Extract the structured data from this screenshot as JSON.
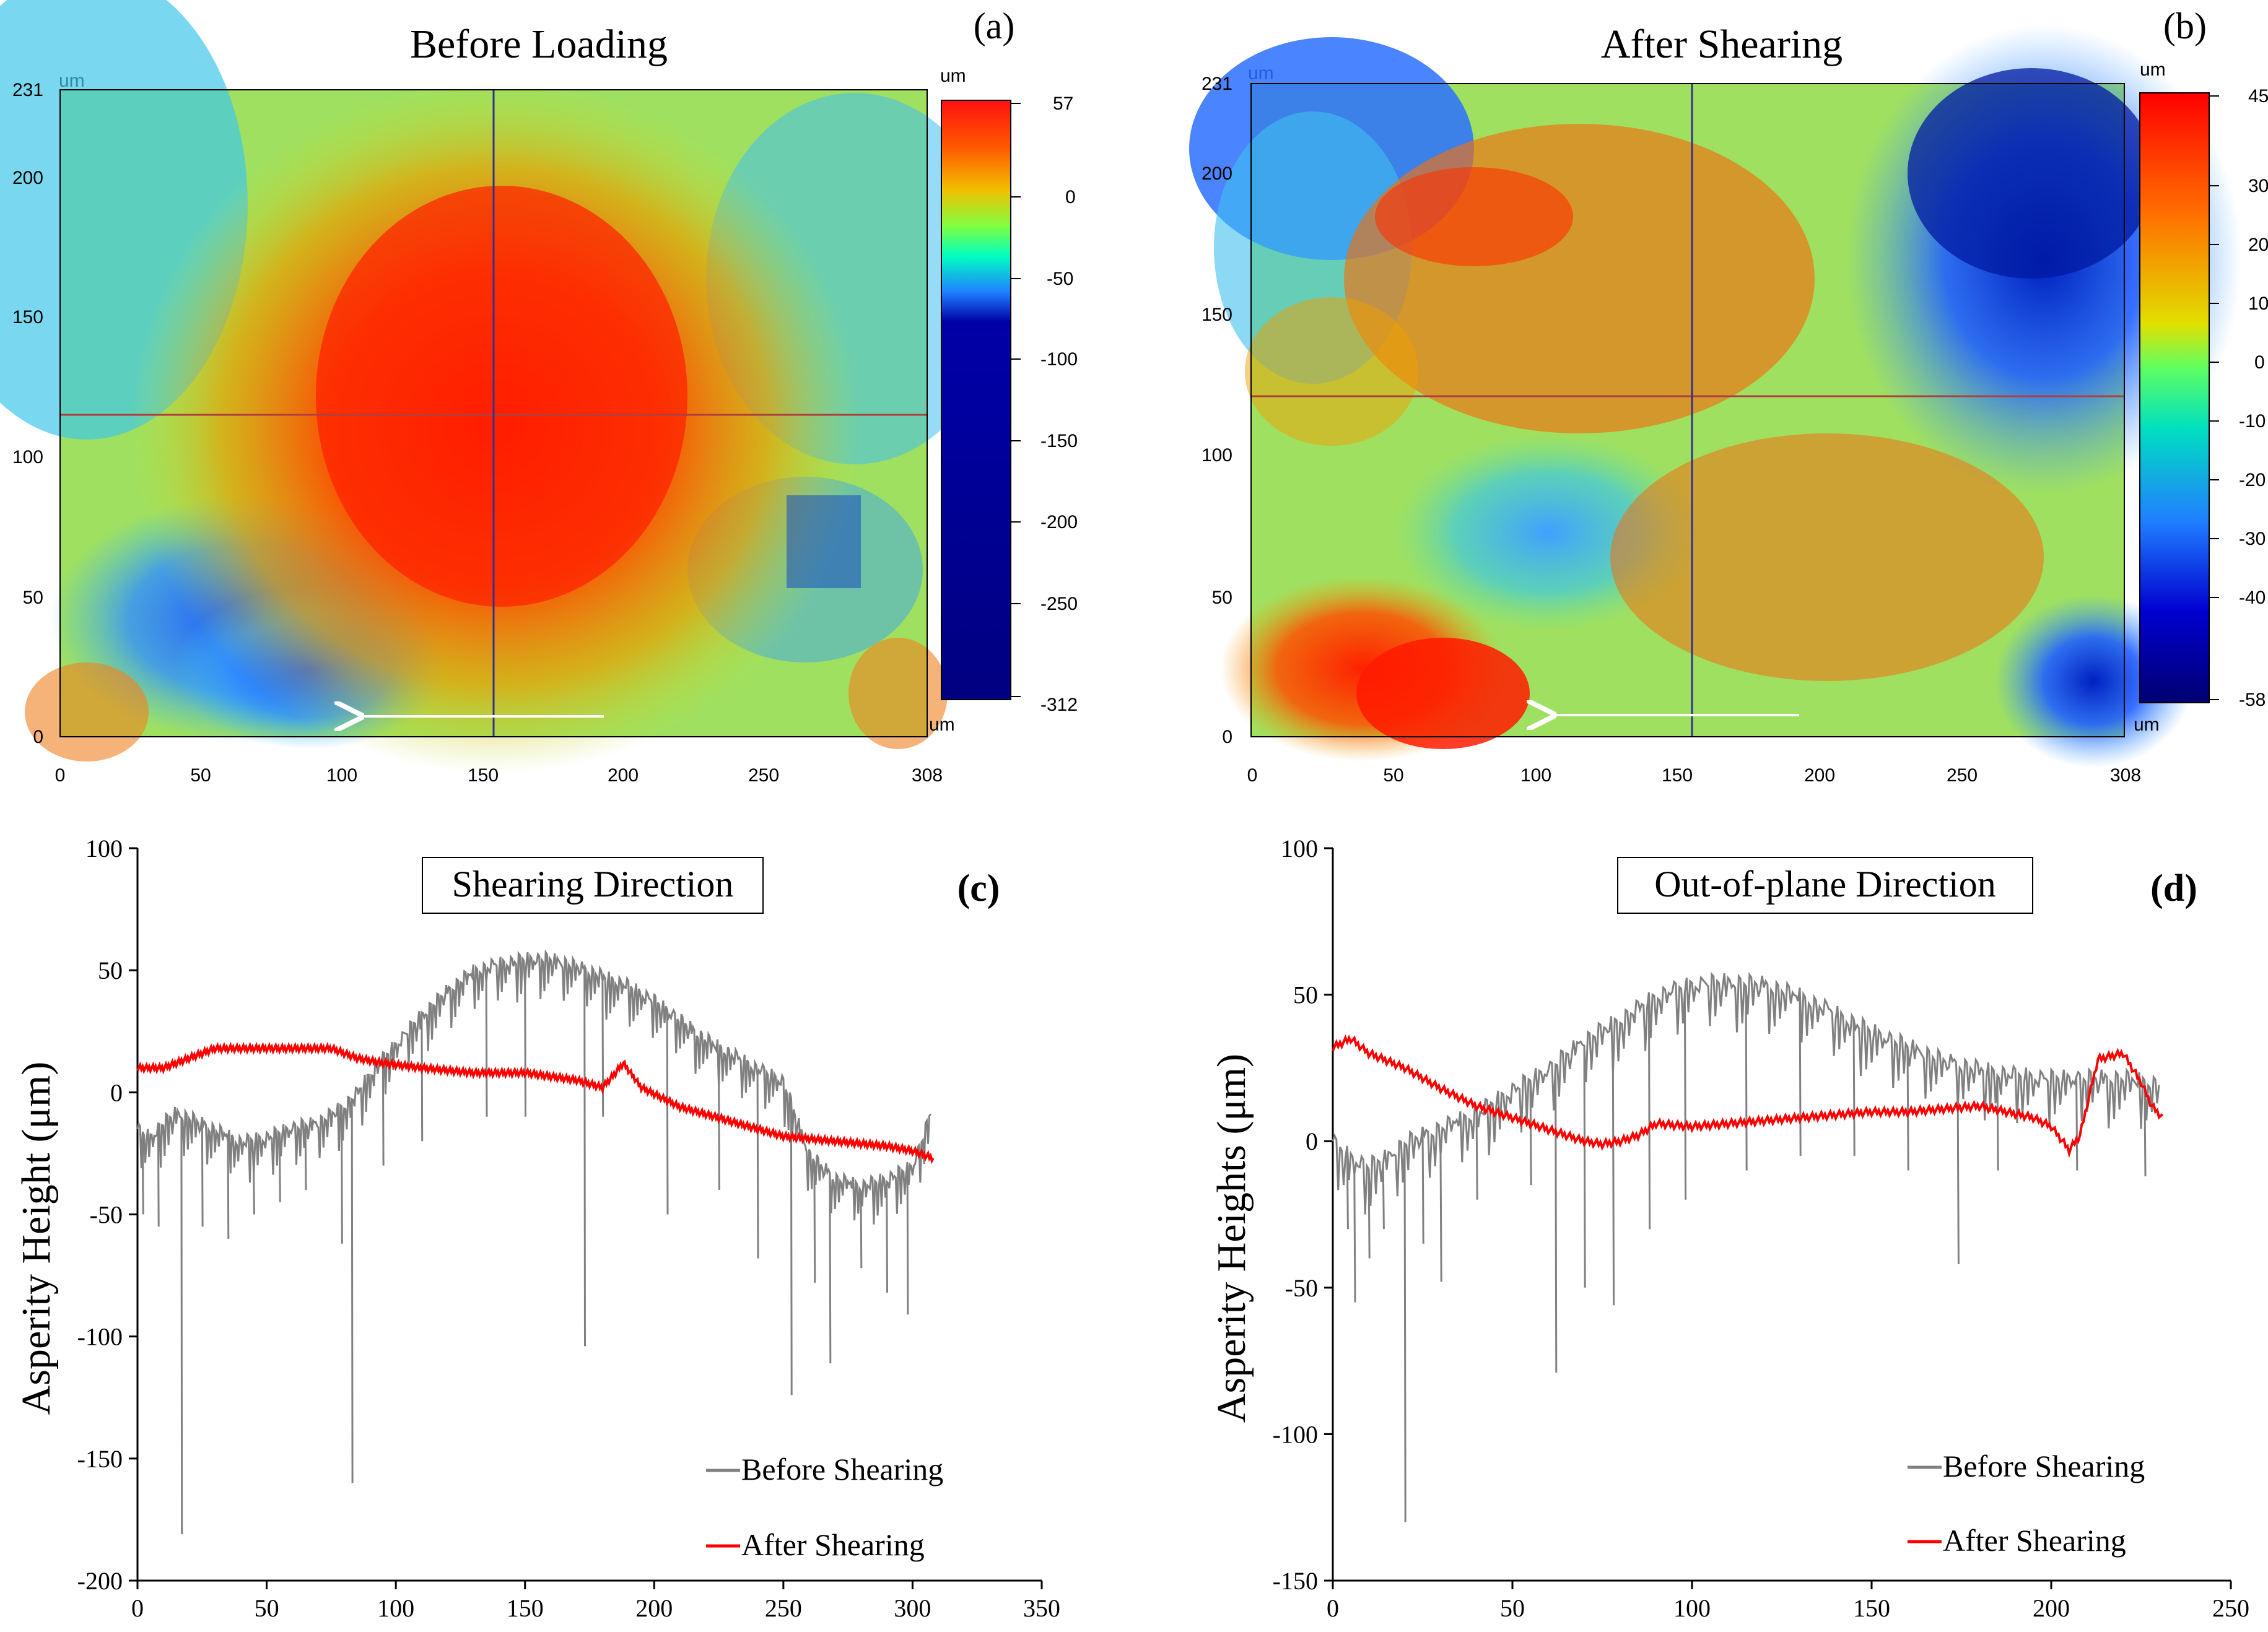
{
  "figure": {
    "panels": [
      {
        "id": "a",
        "label": "(a)",
        "title": "Before Loading",
        "type": "heatmap",
        "x_unit": "um",
        "y_unit": "um",
        "cbar_unit_top": "um",
        "cbar_unit_bottom": "um",
        "x_ticks": [
          "0",
          "50",
          "100",
          "150",
          "200",
          "250",
          "308"
        ],
        "y_ticks": [
          "0",
          "50",
          "100",
          "150",
          "200",
          "231"
        ],
        "cbar_ticks": [
          "57",
          "0",
          "-50",
          "-100",
          "-150",
          "-200",
          "-250",
          "-312"
        ]
      },
      {
        "id": "b",
        "label": "(b)",
        "title": "After Shearing",
        "type": "heatmap",
        "x_unit": "um",
        "y_unit": "um",
        "cbar_unit_top": "um",
        "cbar_unit_bottom": "um",
        "x_ticks": [
          "0",
          "50",
          "100",
          "150",
          "200",
          "250",
          "308"
        ],
        "y_ticks": [
          "0",
          "50",
          "100",
          "150",
          "200",
          "231"
        ],
        "cbar_ticks": [
          "45",
          "30",
          "20",
          "10",
          "0",
          "-10",
          "-20",
          "-30",
          "-40",
          "-58"
        ]
      }
    ],
    "colors": {
      "before": "#808080",
      "after": "#ff0000",
      "crosshair_h": "#b04040",
      "crosshair_v": "#303090",
      "arrow": "#ffffff"
    }
  },
  "chart_data": [
    {
      "id": "c",
      "type": "line",
      "label": "(c)",
      "title": "Shearing Direction",
      "xlabel": "",
      "ylabel": "Asperity Height (μm)",
      "xlim": [
        0,
        350
      ],
      "ylim": [
        -200,
        100
      ],
      "x_ticks": [
        0,
        50,
        100,
        150,
        200,
        250,
        300,
        350
      ],
      "y_ticks": [
        -200,
        -150,
        -100,
        -50,
        0,
        50,
        100
      ],
      "legend": [
        "Before Shearing",
        "After Shearing"
      ],
      "legend_position": "bottom-right",
      "series": [
        {
          "name": "Before Shearing",
          "x": [
            0,
            5,
            10,
            15,
            20,
            30,
            40,
            50,
            60,
            70,
            80,
            85,
            90,
            100,
            110,
            120,
            130,
            140,
            150,
            160,
            170,
            180,
            190,
            200,
            210,
            220,
            230,
            240,
            250,
            255,
            260,
            270,
            280,
            290,
            300,
            305,
            307
          ],
          "y": [
            -15,
            -18,
            -12,
            -8,
            -10,
            -15,
            -20,
            -18,
            -14,
            -12,
            -5,
            0,
            8,
            20,
            32,
            42,
            50,
            53,
            55,
            55,
            52,
            48,
            44,
            38,
            30,
            22,
            16,
            10,
            5,
            -10,
            -25,
            -35,
            -38,
            -35,
            -30,
            -15,
            -8
          ],
          "spikes": [
            [
              2,
              -50
            ],
            [
              8,
              -55
            ],
            [
              17,
              -181
            ],
            [
              25,
              -55
            ],
            [
              35,
              -60
            ],
            [
              45,
              -50
            ],
            [
              55,
              -45
            ],
            [
              65,
              -40
            ],
            [
              79,
              -62
            ],
            [
              83,
              -160
            ],
            [
              95,
              -30
            ],
            [
              110,
              -20
            ],
            [
              135,
              -10
            ],
            [
              150,
              -10
            ],
            [
              173,
              -104
            ],
            [
              180,
              -10
            ],
            [
              205,
              -50
            ],
            [
              225,
              -40
            ],
            [
              240,
              -68
            ],
            [
              253,
              -124
            ],
            [
              262,
              -78
            ],
            [
              268,
              -111
            ],
            [
              280,
              -72
            ],
            [
              290,
              -82
            ],
            [
              298,
              -91
            ]
          ]
        },
        {
          "name": "After Shearing",
          "x": [
            0,
            10,
            20,
            30,
            40,
            60,
            75,
            85,
            95,
            110,
            130,
            150,
            170,
            180,
            185,
            188,
            195,
            210,
            230,
            250,
            270,
            290,
            300,
            308
          ],
          "y": [
            10,
            10,
            14,
            18,
            18,
            18,
            18,
            14,
            12,
            10,
            8,
            8,
            5,
            2,
            8,
            12,
            2,
            -6,
            -12,
            -18,
            -20,
            -22,
            -24,
            -27
          ]
        }
      ]
    },
    {
      "id": "d",
      "type": "line",
      "label": "(d)",
      "title": "Out-of-plane Direction",
      "xlabel": "",
      "ylabel": "Asperity Heights (μm)",
      "xlim": [
        0,
        250
      ],
      "ylim": [
        -150,
        100
      ],
      "x_ticks": [
        0,
        50,
        100,
        150,
        200,
        250
      ],
      "y_ticks": [
        -150,
        -100,
        -50,
        0,
        50,
        100
      ],
      "legend": [
        "Before Shearing",
        "After Shearing"
      ],
      "legend_position": "bottom-right",
      "series": [
        {
          "name": "Before Shearing",
          "x": [
            0,
            5,
            10,
            15,
            20,
            30,
            40,
            50,
            60,
            70,
            80,
            90,
            100,
            110,
            120,
            130,
            140,
            150,
            160,
            170,
            180,
            190,
            200,
            210,
            220,
            230
          ],
          "y": [
            0,
            -5,
            -8,
            -5,
            0,
            5,
            10,
            18,
            25,
            35,
            42,
            50,
            54,
            55,
            54,
            50,
            44,
            38,
            33,
            28,
            25,
            23,
            22,
            22,
            22,
            20
          ],
          "spikes": [
            [
              4,
              -30
            ],
            [
              6,
              -55
            ],
            [
              10,
              -40
            ],
            [
              14,
              -30
            ],
            [
              20,
              -130
            ],
            [
              25,
              -35
            ],
            [
              30,
              -48
            ],
            [
              40,
              -20
            ],
            [
              55,
              -15
            ],
            [
              62,
              -79
            ],
            [
              70,
              -50
            ],
            [
              78,
              -56
            ],
            [
              88,
              -30
            ],
            [
              98,
              -20
            ],
            [
              115,
              -10
            ],
            [
              130,
              -5
            ],
            [
              145,
              -5
            ],
            [
              160,
              -10
            ],
            [
              174,
              -42
            ],
            [
              185,
              -10
            ],
            [
              207,
              -10
            ],
            [
              226,
              -12
            ]
          ]
        },
        {
          "name": "After Shearing",
          "x": [
            0,
            5,
            10,
            20,
            30,
            40,
            50,
            60,
            70,
            75,
            80,
            85,
            90,
            100,
            110,
            120,
            130,
            140,
            150,
            160,
            170,
            180,
            195,
            200,
            205,
            208,
            213,
            220,
            225,
            228,
            231
          ],
          "y": [
            32,
            35,
            30,
            25,
            18,
            12,
            8,
            4,
            0,
            -1,
            0,
            2,
            6,
            5,
            6,
            7,
            8,
            9,
            10,
            10,
            11,
            12,
            8,
            5,
            -3,
            2,
            28,
            30,
            20,
            12,
            8
          ]
        }
      ]
    }
  ]
}
